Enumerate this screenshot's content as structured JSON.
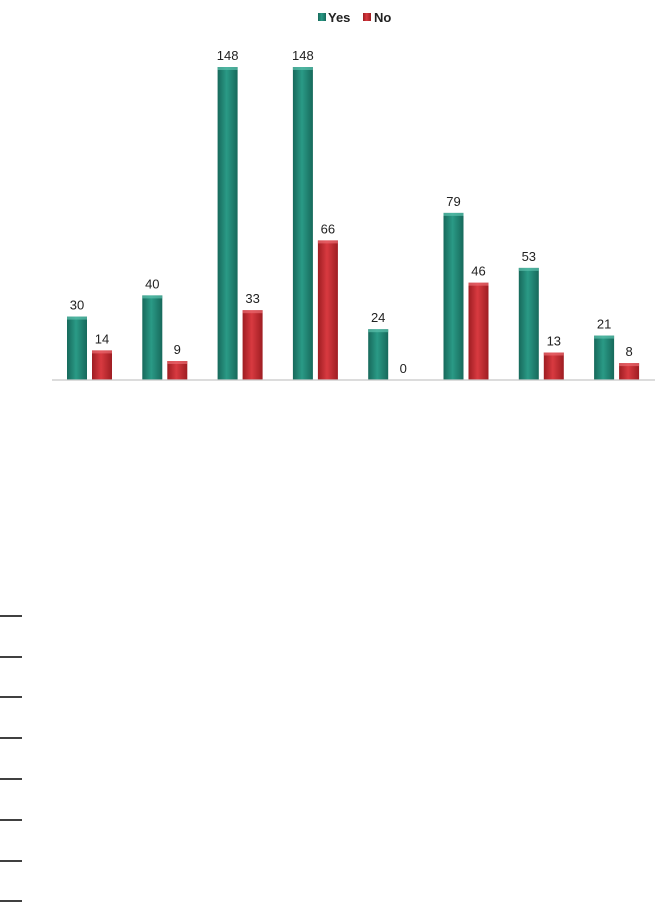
{
  "chart_data": {
    "type": "bar",
    "categories": [
      "",
      "",
      "",
      "",
      "",
      "",
      "",
      ""
    ],
    "series": [
      {
        "name": "Yes",
        "values": [
          30,
          40,
          148,
          148,
          24,
          79,
          53,
          21
        ]
      },
      {
        "name": "No",
        "values": [
          14,
          9,
          33,
          66,
          0,
          46,
          13,
          8
        ]
      }
    ],
    "ylim": [
      0,
      148
    ],
    "grid": false,
    "legend_position": "top-center",
    "data_labels": true,
    "colors": {
      "Yes": "#1e7f6e",
      "No": "#c0272d"
    }
  },
  "legend": {
    "items": [
      {
        "label": "Yes",
        "color": "#1e7f6e"
      },
      {
        "label": "No",
        "color": "#c0272d"
      }
    ]
  }
}
